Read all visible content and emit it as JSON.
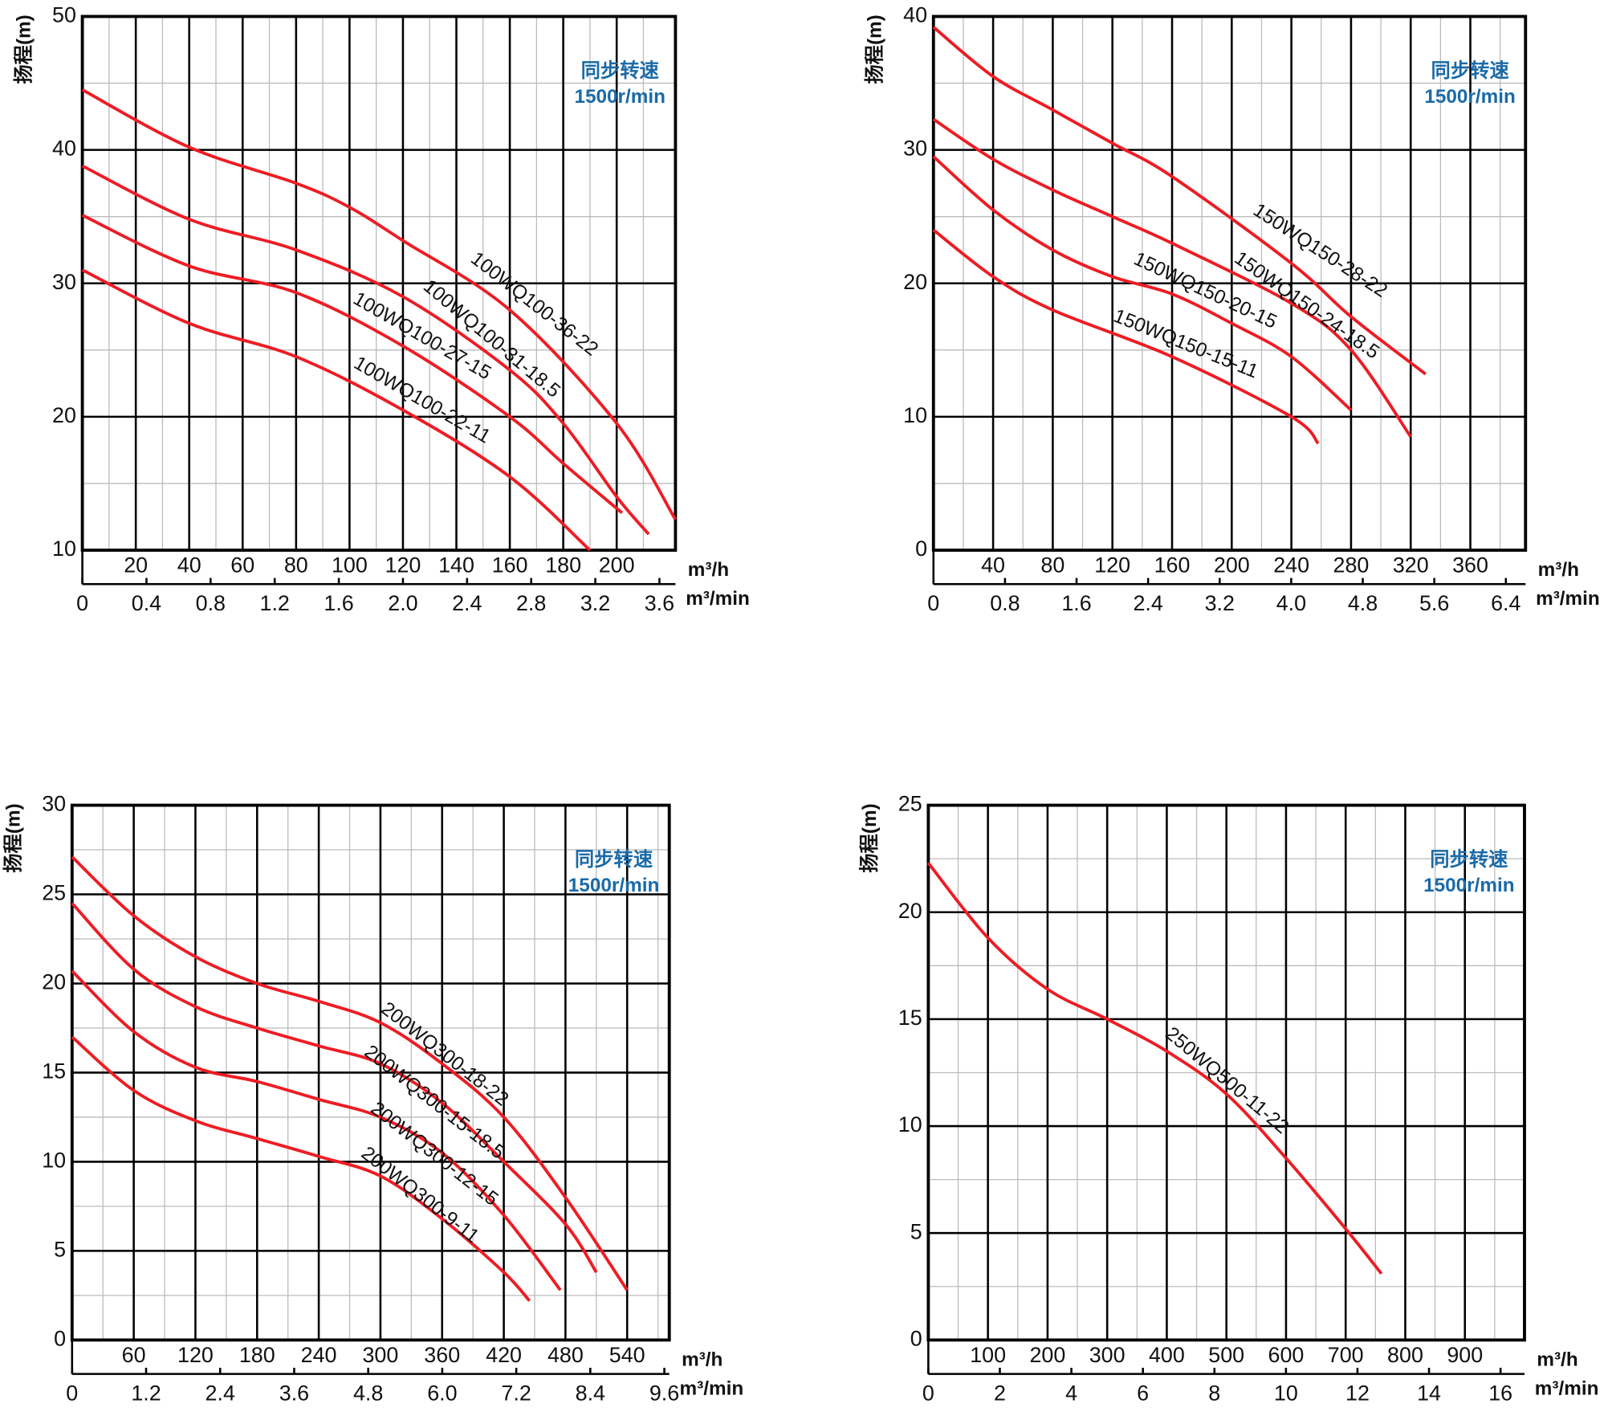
{
  "chart_data": [
    {
      "type": "line",
      "y_label": "扬程(m)",
      "x_label": "m³/h",
      "x2_label": "m³/min",
      "annotations": [
        "同步转速",
        "1500r/min"
      ],
      "xlim": [
        0,
        222
      ],
      "xticks": [
        20,
        40,
        60,
        80,
        100,
        120,
        140,
        160,
        180,
        200
      ],
      "x2lim": [
        0,
        3.7
      ],
      "x2ticks": [
        0,
        0.4,
        0.8,
        1.2,
        1.6,
        {
          "value": 2.0,
          "label": "2.0"
        },
        2.4,
        2.8,
        3.2,
        3.6
      ],
      "ylim": [
        10,
        50
      ],
      "yticks": [
        10,
        20,
        30,
        40,
        50
      ],
      "grid": true,
      "series": [
        {
          "name": "100WQ100-36-22",
          "color": "#ee1c24",
          "x": [
            0,
            40,
            80,
            100,
            120,
            160,
            200,
            222
          ],
          "values": [
            44.5,
            40.2,
            37.5,
            35.7,
            33.2,
            28,
            19.5,
            12.3
          ]
        },
        {
          "name": "100WQ100-31-18.5",
          "color": "#ee1c24",
          "x": [
            0,
            40,
            80,
            120,
            160,
            180,
            200,
            212
          ],
          "values": [
            38.8,
            34.8,
            32.5,
            29,
            23.5,
            19.5,
            14,
            11.2
          ]
        },
        {
          "name": "100WQ100-27-15",
          "color": "#ee1c24",
          "x": [
            0,
            40,
            80,
            120,
            160,
            180,
            202
          ],
          "values": [
            35.1,
            31.3,
            29.3,
            25.3,
            20,
            16.5,
            12.8
          ]
        },
        {
          "name": "100WQ100-22-11",
          "color": "#ee1c24",
          "x": [
            0,
            40,
            80,
            120,
            160,
            190
          ],
          "values": [
            31,
            27,
            24.5,
            20.5,
            15.5,
            10
          ]
        }
      ]
    },
    {
      "type": "line",
      "y_label": "扬程(m)",
      "x_label": "m³/h",
      "x2_label": "m³/min",
      "annotations": [
        "同步转速",
        "1500r/min"
      ],
      "xlim": [
        0,
        397
      ],
      "xticks": [
        40,
        80,
        120,
        160,
        200,
        240,
        280,
        320,
        360
      ],
      "x2lim": [
        0,
        6.62
      ],
      "x2ticks": [
        0,
        0.8,
        1.6,
        2.4,
        3.2,
        {
          "value": 4.0,
          "label": "4.0"
        },
        4.8,
        5.6,
        6.4
      ],
      "ylim": [
        0,
        40
      ],
      "yticks": [
        0,
        10,
        20,
        30,
        40
      ],
      "grid": true,
      "series": [
        {
          "name": "150WQ150-28-22",
          "color": "#ee1c24",
          "x": [
            0,
            40,
            80,
            120,
            160,
            240,
            280,
            330
          ],
          "values": [
            39.2,
            35.5,
            33,
            30.5,
            28,
            21.5,
            17.5,
            13.2
          ]
        },
        {
          "name": "150WQ150-24-18.5",
          "color": "#ee1c24",
          "x": [
            0,
            40,
            80,
            120,
            160,
            240,
            280,
            320
          ],
          "values": [
            32.3,
            29.3,
            27,
            25,
            23,
            18.5,
            15,
            8.5
          ]
        },
        {
          "name": "150WQ150-20-15",
          "color": "#ee1c24",
          "x": [
            0,
            40,
            80,
            120,
            160,
            200,
            240,
            280
          ],
          "values": [
            29.5,
            25.5,
            22.5,
            20.5,
            19.2,
            17,
            14.5,
            10.5
          ]
        },
        {
          "name": "150WQ150-15-11",
          "color": "#ee1c24",
          "x": [
            0,
            40,
            80,
            160,
            240,
            258
          ],
          "values": [
            24,
            20.5,
            18,
            14.5,
            10,
            8
          ]
        }
      ]
    },
    {
      "type": "line",
      "y_label": "扬程(m)",
      "x_label": "m³/h",
      "x2_label": "m³/min",
      "annotations": [
        "同步转速",
        "1500r/min"
      ],
      "xlim": [
        0,
        581
      ],
      "xticks": [
        60,
        120,
        180,
        240,
        300,
        360,
        420,
        480,
        540
      ],
      "x2lim": [
        0,
        9.68
      ],
      "x2ticks": [
        0,
        1.2,
        2.4,
        3.6,
        4.8,
        {
          "value": 6.0,
          "label": "6.0"
        },
        7.2,
        8.4,
        9.6
      ],
      "ylim": [
        0,
        30
      ],
      "yticks": [
        0,
        5,
        10,
        15,
        20,
        25,
        30
      ],
      "grid": true,
      "series": [
        {
          "name": "200WQ300-18-22",
          "color": "#ee1c24",
          "x": [
            0,
            60,
            120,
            180,
            240,
            300,
            360,
            420,
            480,
            540
          ],
          "values": [
            27.1,
            23.8,
            21.5,
            20,
            19,
            17.8,
            15.5,
            12.5,
            8,
            2.8
          ]
        },
        {
          "name": "200WQ300-15-18.5",
          "color": "#ee1c24",
          "x": [
            0,
            60,
            120,
            180,
            240,
            300,
            360,
            420,
            480,
            510
          ],
          "values": [
            24.5,
            20.8,
            18.7,
            17.5,
            16.5,
            15.5,
            13.3,
            10,
            6.5,
            3.8
          ]
        },
        {
          "name": "200WQ300-12-15",
          "color": "#ee1c24",
          "x": [
            0,
            60,
            120,
            180,
            240,
            300,
            360,
            420,
            475
          ],
          "values": [
            20.7,
            17.3,
            15.3,
            14.5,
            13.5,
            12.5,
            10.5,
            7,
            2.8
          ]
        },
        {
          "name": "200WQ300-9-11",
          "color": "#ee1c24",
          "x": [
            0,
            60,
            120,
            180,
            240,
            300,
            360,
            420,
            445
          ],
          "values": [
            17,
            14,
            12.3,
            11.3,
            10.3,
            9.2,
            6.8,
            3.8,
            2.2
          ]
        }
      ]
    },
    {
      "type": "line",
      "y_label": "扬程(m)",
      "x_label": "m³/h",
      "x2_label": "m³/min",
      "annotations": [
        "同步转速",
        "1500r/min"
      ],
      "xlim": [
        0,
        1000
      ],
      "xticks": [
        100,
        200,
        300,
        400,
        500,
        600,
        700,
        800,
        900
      ],
      "x2lim": [
        0,
        16.67
      ],
      "x2ticks": [
        0,
        2,
        4,
        6,
        8,
        10,
        12,
        14,
        16
      ],
      "ylim": [
        0,
        25
      ],
      "yticks": [
        0,
        5,
        10,
        15,
        20,
        25
      ],
      "grid": true,
      "series": [
        {
          "name": "250WQ500-11-22",
          "color": "#ee1c24",
          "x": [
            0,
            100,
            200,
            300,
            400,
            500,
            600,
            700,
            760
          ],
          "values": [
            22.3,
            18.8,
            16.4,
            15,
            13.5,
            11.5,
            8.5,
            5.2,
            3.1
          ]
        }
      ]
    }
  ]
}
